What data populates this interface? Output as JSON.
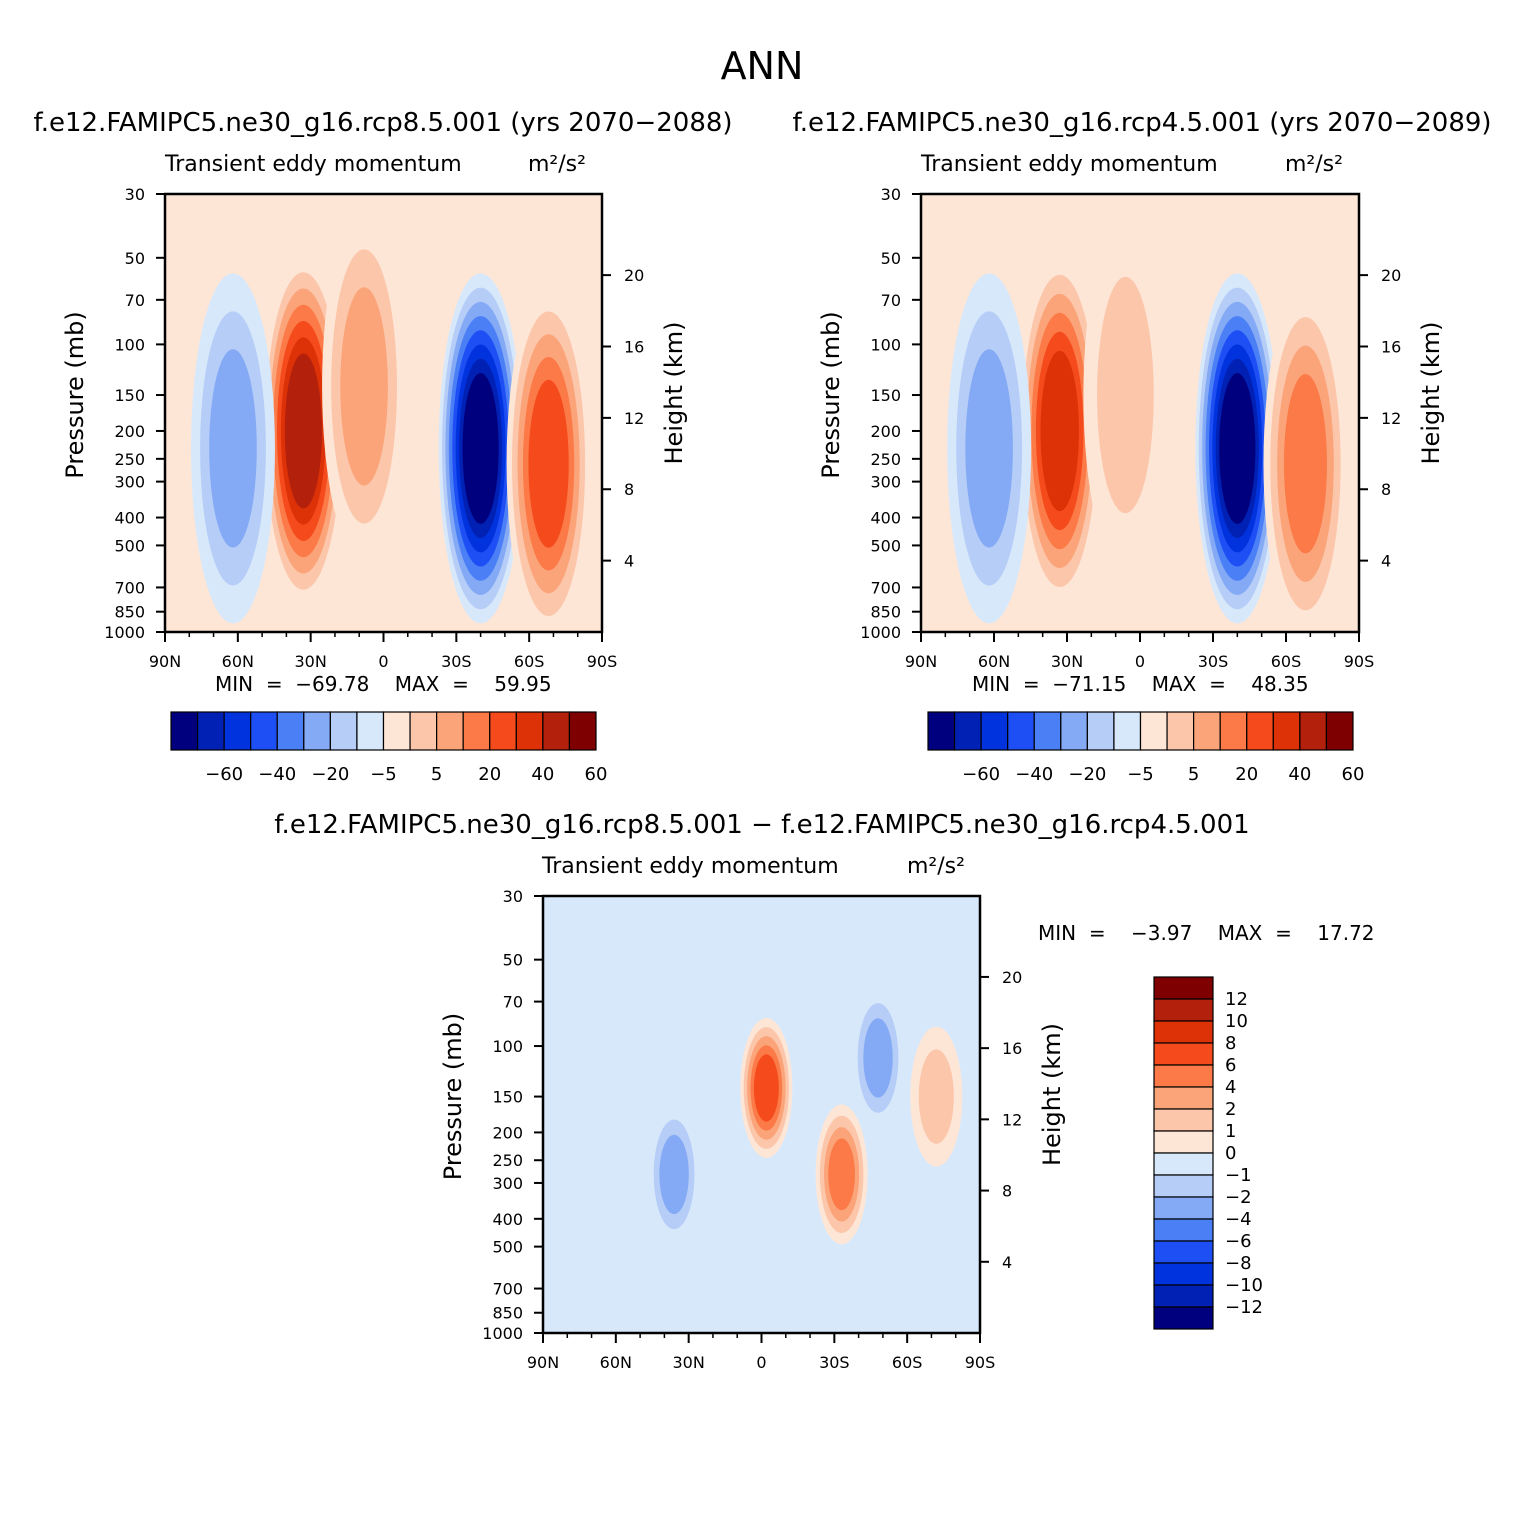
{
  "main_title": "ANN",
  "panels": {
    "p1": {
      "case_title": "f.e12.FAMIPC5.ne30_g16.rcp8.5.001 (yrs 2070−2088)",
      "subtitle": "Transient  eddy  momentum",
      "units": "m²/s²",
      "minmax": "MIN  =  −69.78    MAX  =    59.95"
    },
    "p2": {
      "case_title": "f.e12.FAMIPC5.ne30_g16.rcp4.5.001 (yrs 2070−2089)",
      "subtitle": "Transient  eddy  momentum",
      "units": "m²/s²",
      "minmax": "MIN  =  −71.15    MAX  =    48.35"
    },
    "p3": {
      "case_title": "f.e12.FAMIPC5.ne30_g16.rcp8.5.001 − f.e12.FAMIPC5.ne30_g16.rcp4.5.001",
      "subtitle": "Transient  eddy  momentum",
      "units": "m²/s²",
      "minmax": "MIN  =    −3.97    MAX  =    17.72"
    }
  },
  "chart_data": [
    {
      "type": "heatmap",
      "title": "Transient  eddy  momentum",
      "units": "m²/s²",
      "xlabel": "",
      "ylabel": "Pressure  (mb)",
      "ylabel_right": "Height  (km)",
      "x_ticks": [
        "90N",
        "60N",
        "30N",
        "0",
        "30S",
        "60S",
        "90S"
      ],
      "y_ticks": [
        30,
        50,
        70,
        100,
        150,
        200,
        250,
        300,
        400,
        500,
        700,
        850,
        1000
      ],
      "y_right_ticks": [
        4,
        8,
        12,
        16,
        20
      ],
      "y_scale": "log",
      "min": -69.78,
      "max": 59.95,
      "features": [
        {
          "lat": 33,
          "p": 200,
          "value": 55
        },
        {
          "lat": -40,
          "p": 230,
          "value": -68
        },
        {
          "lat": 62,
          "p": 230,
          "value": -18
        },
        {
          "lat": -68,
          "p": 260,
          "value": 30
        },
        {
          "lat": 8,
          "p": 140,
          "value": 12
        }
      ],
      "colorbar": {
        "labels": [
          "−60",
          "−40",
          "−20",
          "−5",
          "5",
          "20",
          "40",
          "60"
        ]
      }
    },
    {
      "type": "heatmap",
      "title": "Transient  eddy  momentum",
      "units": "m²/s²",
      "xlabel": "",
      "ylabel": "Pressure  (mb)",
      "ylabel_right": "Height  (km)",
      "x_ticks": [
        "90N",
        "60N",
        "30N",
        "0",
        "30S",
        "60S",
        "90S"
      ],
      "y_ticks": [
        30,
        50,
        70,
        100,
        150,
        200,
        250,
        300,
        400,
        500,
        700,
        850,
        1000
      ],
      "y_right_ticks": [
        4,
        8,
        12,
        16,
        20
      ],
      "y_scale": "log",
      "min": -71.15,
      "max": 48.35,
      "features": [
        {
          "lat": 33,
          "p": 200,
          "value": 48
        },
        {
          "lat": -40,
          "p": 230,
          "value": -70
        },
        {
          "lat": 62,
          "p": 230,
          "value": -12
        },
        {
          "lat": -68,
          "p": 260,
          "value": 28
        },
        {
          "lat": 6,
          "p": 150,
          "value": 6
        }
      ],
      "colorbar": {
        "labels": [
          "−60",
          "−40",
          "−20",
          "−5",
          "5",
          "20",
          "40",
          "60"
        ]
      }
    },
    {
      "type": "heatmap",
      "title": "Transient  eddy  momentum",
      "units": "m²/s²",
      "xlabel": "",
      "ylabel": "Pressure  (mb)",
      "ylabel_right": "Height  (km)",
      "x_ticks": [
        "90N",
        "60N",
        "30N",
        "0",
        "30S",
        "60S",
        "90S"
      ],
      "y_ticks": [
        30,
        50,
        70,
        100,
        150,
        200,
        250,
        300,
        400,
        500,
        700,
        850,
        1000
      ],
      "y_right_ticks": [
        4,
        8,
        12,
        16,
        20
      ],
      "y_scale": "log",
      "min": -3.97,
      "max": 17.72,
      "features": [
        {
          "lat": -2,
          "p": 140,
          "value": 6
        },
        {
          "lat": -33,
          "p": 280,
          "value": 4
        },
        {
          "lat": 36,
          "p": 280,
          "value": -3
        },
        {
          "lat": -48,
          "p": 110,
          "value": -3
        },
        {
          "lat": -72,
          "p": 150,
          "value": 1.5
        }
      ],
      "colorbar": {
        "labels": [
          "12",
          "10",
          "8",
          "6",
          "4",
          "2",
          "1",
          "0",
          "−1",
          "−2",
          "−4",
          "−6",
          "−8",
          "−10",
          "−12"
        ]
      }
    }
  ],
  "palette": [
    "#00007f",
    "#0021b3",
    "#0033dd",
    "#1d4ff5",
    "#4a7ff5",
    "#84a9f5",
    "#b5cdf7",
    "#d8e8fb",
    "#fde6d6",
    "#fcc6ab",
    "#fba479",
    "#fb7a48",
    "#f54b1c",
    "#dd3208",
    "#b3200b",
    "#7f0000"
  ]
}
